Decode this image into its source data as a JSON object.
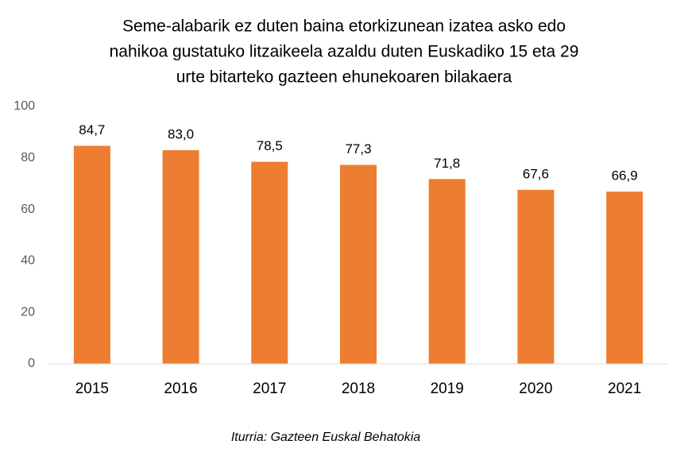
{
  "chart_data": {
    "type": "bar",
    "title": [
      "Seme-alabarik ez duten baina etorkizunean izatea asko edo",
      "nahikoa gustatuko litzaikeela azaldu duten Euskadiko 15 eta 29",
      "urte bitarteko gazteen ehunekoaren bilakaera"
    ],
    "categories": [
      "2015",
      "2016",
      "2017",
      "2018",
      "2019",
      "2020",
      "2021"
    ],
    "values": [
      84.7,
      83.0,
      78.5,
      77.3,
      71.8,
      67.6,
      66.9
    ],
    "value_labels": [
      "84,7",
      "83,0",
      "78,5",
      "77,3",
      "71,8",
      "67,6",
      "66,9"
    ],
    "color": "#ed7d31",
    "ylim": [
      0,
      100
    ],
    "yticks": [
      0,
      20,
      40,
      60,
      80,
      100
    ],
    "grid": false,
    "source": "Iturria: Gazteen Euskal Behatokia"
  }
}
